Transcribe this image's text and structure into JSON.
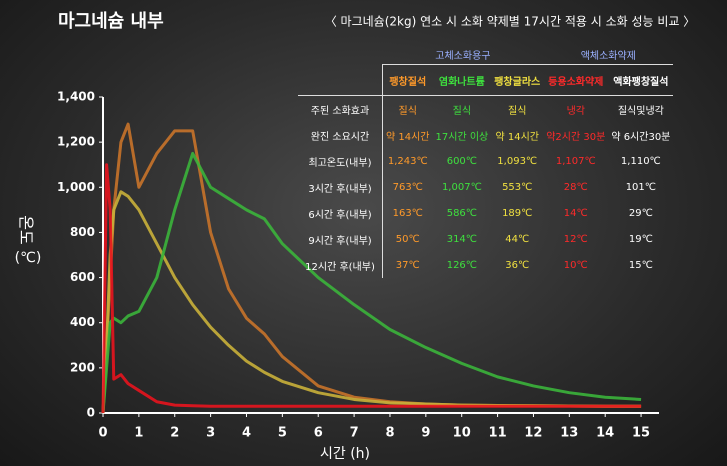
{
  "title": "마그네슘 내부",
  "subtitle": "〈 마그네슘(2kg) 연소 시 소화 약제별 17시간 적용 시 소화 성능 비교 〉",
  "chart_data": {
    "type": "line",
    "xlabel": "시간 (h)",
    "ylabel": "온도",
    "yunit": "(℃)",
    "x": [
      0,
      0.1,
      0.2,
      0.3,
      0.5,
      0.7,
      1,
      1.5,
      2,
      2.5,
      3,
      3.5,
      4,
      4.5,
      5,
      6,
      7,
      8,
      9,
      10,
      11,
      12,
      13,
      14,
      15
    ],
    "xlim": [
      0,
      15.5
    ],
    "xticks": [
      0,
      1,
      2,
      3,
      4,
      5,
      6,
      7,
      8,
      9,
      10,
      11,
      12,
      13,
      14,
      15
    ],
    "ylim": [
      0,
      1400
    ],
    "yticks": [
      0,
      200,
      400,
      600,
      800,
      {
        "value": 1000,
        "label": "1,000"
      },
      {
        "value": 1200,
        "label": "1,200"
      },
      {
        "value": 1400,
        "label": "1,400"
      }
    ],
    "series": [
      {
        "color": "#c8732a",
        "values": [
          0,
          300,
          600,
          900,
          1200,
          1280,
          1000,
          1150,
          1250,
          1250,
          800,
          550,
          420,
          350,
          250,
          120,
          70,
          50,
          40,
          35,
          33,
          32,
          31,
          30,
          30
        ]
      },
      {
        "color": "#c9b03a",
        "values": [
          0,
          300,
          700,
          900,
          980,
          960,
          900,
          750,
          600,
          480,
          380,
          300,
          230,
          180,
          140,
          90,
          60,
          45,
          40,
          35,
          33,
          32,
          31,
          30,
          30
        ]
      },
      {
        "color": "#3bb43b",
        "values": [
          0,
          200,
          400,
          420,
          400,
          430,
          450,
          600,
          900,
          1150,
          1000,
          950,
          900,
          860,
          750,
          600,
          480,
          370,
          290,
          220,
          160,
          120,
          90,
          70,
          60
        ]
      },
      {
        "color": "#e8141e",
        "values": [
          0,
          1100,
          900,
          150,
          170,
          130,
          100,
          50,
          35,
          32,
          30,
          30,
          30,
          30,
          30,
          30,
          30,
          30,
          30,
          30,
          30,
          30,
          30,
          30,
          30
        ]
      }
    ]
  },
  "table": {
    "groups": [
      "고체소화용구",
      "액체소화약제"
    ],
    "columns": [
      "팽창질석",
      "염화나트륨",
      "팽창글라스",
      "등용소화약제",
      "액화팽창질석"
    ],
    "rows": [
      [
        "주된 소화효과",
        "질식",
        "질식",
        "질식",
        "냉각",
        "질식및냉각"
      ],
      [
        "완진 소요시간",
        "약 14시간",
        "17시간 이상",
        "약 14시간",
        "약2시간 30분",
        "약 6시간30분"
      ],
      [
        "최고온도(내부)",
        "1,243℃",
        "600℃",
        "1,093℃",
        "1,107℃",
        "1,110℃"
      ],
      [
        "3시간 후(내부)",
        "763℃",
        "1,007℃",
        "553℃",
        "28℃",
        "101℃"
      ],
      [
        "6시간 후(내부)",
        "163℃",
        "586℃",
        "189℃",
        "14℃",
        "29℃"
      ],
      [
        "9시간 후(내부)",
        "50℃",
        "314℃",
        "44℃",
        "12℃",
        "19℃"
      ],
      [
        "12시간 후(내부)",
        "37℃",
        "126℃",
        "36℃",
        "10℃",
        "15℃"
      ]
    ]
  }
}
